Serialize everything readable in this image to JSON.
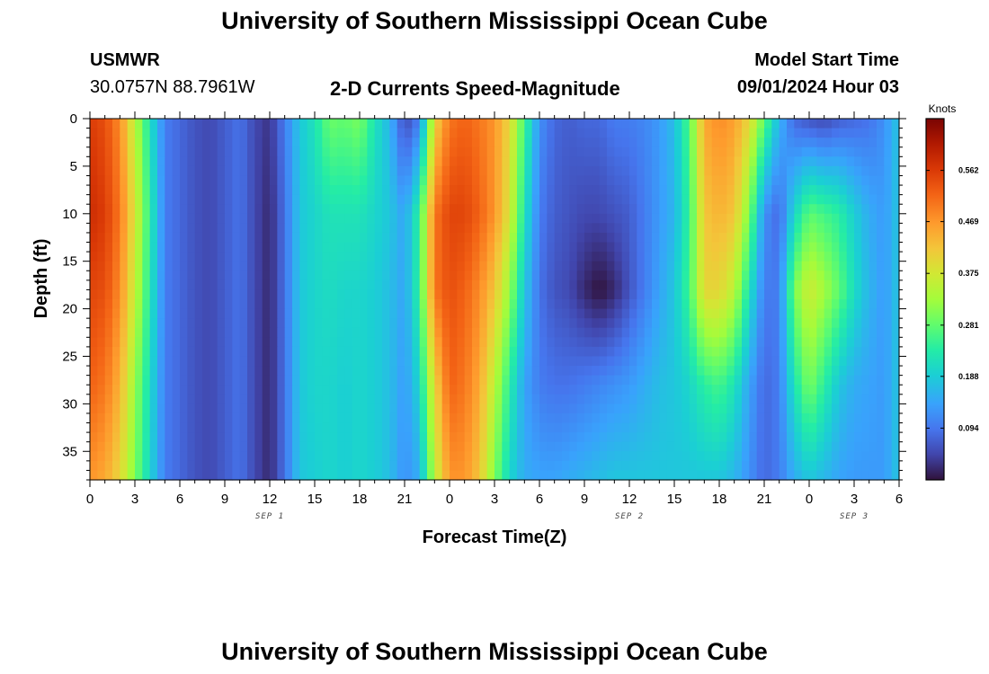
{
  "header": {
    "title": "University of Southern Mississippi Ocean Cube",
    "station": "USMWR",
    "coords": "30.0757N  88.7961W",
    "subtitle": "2-D Currents Speed-Magnitude",
    "model_start_label": "Model Start Time",
    "model_start_value": "09/01/2024 Hour 03"
  },
  "footer": {
    "title": "University of Southern Mississippi Ocean Cube"
  },
  "chart_data": {
    "type": "heatmap",
    "title": "2-D Currents Speed-Magnitude",
    "xlabel": "Forecast Time(Z)",
    "ylabel": "Depth (ft)",
    "x_range_hours": [
      0,
      54
    ],
    "y_range_ft": [
      0,
      38
    ],
    "x_ticks": [
      {
        "hour": 0,
        "label": "0"
      },
      {
        "hour": 3,
        "label": "3"
      },
      {
        "hour": 6,
        "label": "6"
      },
      {
        "hour": 9,
        "label": "9"
      },
      {
        "hour": 12,
        "label": "12"
      },
      {
        "hour": 15,
        "label": "15"
      },
      {
        "hour": 18,
        "label": "18"
      },
      {
        "hour": 21,
        "label": "21"
      },
      {
        "hour": 24,
        "label": "0"
      },
      {
        "hour": 27,
        "label": "3"
      },
      {
        "hour": 30,
        "label": "6"
      },
      {
        "hour": 33,
        "label": "9"
      },
      {
        "hour": 36,
        "label": "12"
      },
      {
        "hour": 39,
        "label": "15"
      },
      {
        "hour": 42,
        "label": "18"
      },
      {
        "hour": 45,
        "label": "21"
      },
      {
        "hour": 48,
        "label": "0"
      },
      {
        "hour": 51,
        "label": "3"
      },
      {
        "hour": 54,
        "label": "6"
      }
    ],
    "date_labels": [
      {
        "hour": 12,
        "label": "SEP 1"
      },
      {
        "hour": 36,
        "label": "SEP 2"
      },
      {
        "hour": 51,
        "label": "SEP 3"
      }
    ],
    "y_ticks": [
      {
        "value": 0,
        "label": "0"
      },
      {
        "value": 5,
        "label": "5"
      },
      {
        "value": 10,
        "label": "10"
      },
      {
        "value": 15,
        "label": "15"
      },
      {
        "value": 20,
        "label": "20"
      },
      {
        "value": 25,
        "label": "25"
      },
      {
        "value": 30,
        "label": "30"
      },
      {
        "value": 35,
        "label": "35"
      }
    ],
    "colorbar": {
      "units": "Knots",
      "min": 0,
      "max": 0.656,
      "ticks": [
        {
          "value": 0.094,
          "label": "0.094"
        },
        {
          "value": 0.188,
          "label": "0.188"
        },
        {
          "value": 0.281,
          "label": "0.281"
        },
        {
          "value": 0.375,
          "label": "0.375"
        },
        {
          "value": 0.469,
          "label": "0.469"
        },
        {
          "value": 0.562,
          "label": "0.562"
        }
      ]
    },
    "profile_hours": [
      0,
      1,
      2,
      3,
      4,
      5,
      6,
      7,
      8,
      9,
      10,
      11,
      12,
      13,
      14,
      15,
      16,
      17,
      18,
      19,
      20,
      21,
      22,
      23,
      24,
      25,
      26,
      27,
      28,
      29,
      30,
      31,
      32,
      33,
      34,
      35,
      36,
      37,
      38,
      39,
      40,
      41,
      42,
      43,
      44,
      45,
      46,
      47,
      48,
      49,
      50,
      51,
      52,
      53,
      54
    ],
    "profile_depths_ft": [
      0,
      10,
      18,
      28,
      38
    ],
    "speed_knots": [
      [
        0.56,
        0.54,
        0.48,
        0.35,
        0.22,
        0.1,
        0.08,
        0.06,
        0.05,
        0.07,
        0.09,
        0.05,
        0.03,
        0.1,
        0.18,
        0.22,
        0.29,
        0.28,
        0.3,
        0.22,
        0.16,
        0.05,
        0.1,
        0.4,
        0.5,
        0.52,
        0.5,
        0.47,
        0.4,
        0.26,
        0.12,
        0.08,
        0.07,
        0.08,
        0.08,
        0.1,
        0.1,
        0.11,
        0.13,
        0.17,
        0.27,
        0.45,
        0.48,
        0.46,
        0.4,
        0.28,
        0.16,
        0.08,
        0.06,
        0.05,
        0.07,
        0.08,
        0.09,
        0.12,
        0.18
      ],
      [
        0.58,
        0.56,
        0.5,
        0.38,
        0.24,
        0.1,
        0.08,
        0.06,
        0.05,
        0.07,
        0.09,
        0.05,
        0.02,
        0.09,
        0.18,
        0.2,
        0.22,
        0.22,
        0.22,
        0.2,
        0.18,
        0.14,
        0.25,
        0.5,
        0.55,
        0.55,
        0.52,
        0.47,
        0.38,
        0.22,
        0.1,
        0.07,
        0.06,
        0.05,
        0.05,
        0.06,
        0.07,
        0.1,
        0.13,
        0.16,
        0.25,
        0.42,
        0.44,
        0.42,
        0.3,
        0.12,
        0.08,
        0.2,
        0.28,
        0.26,
        0.24,
        0.19,
        0.15,
        0.13,
        0.18
      ],
      [
        0.55,
        0.54,
        0.48,
        0.36,
        0.23,
        0.1,
        0.08,
        0.06,
        0.05,
        0.07,
        0.09,
        0.05,
        0.02,
        0.09,
        0.18,
        0.2,
        0.21,
        0.2,
        0.2,
        0.19,
        0.17,
        0.14,
        0.25,
        0.5,
        0.54,
        0.52,
        0.48,
        0.42,
        0.32,
        0.18,
        0.09,
        0.06,
        0.05,
        0.02,
        0.0,
        0.02,
        0.06,
        0.1,
        0.14,
        0.18,
        0.26,
        0.4,
        0.4,
        0.35,
        0.22,
        0.1,
        0.1,
        0.3,
        0.37,
        0.33,
        0.28,
        0.21,
        0.16,
        0.13,
        0.18
      ],
      [
        0.52,
        0.5,
        0.44,
        0.32,
        0.21,
        0.1,
        0.08,
        0.06,
        0.05,
        0.07,
        0.09,
        0.05,
        0.02,
        0.09,
        0.18,
        0.2,
        0.2,
        0.19,
        0.2,
        0.19,
        0.17,
        0.13,
        0.2,
        0.4,
        0.52,
        0.5,
        0.45,
        0.35,
        0.24,
        0.14,
        0.1,
        0.09,
        0.09,
        0.1,
        0.11,
        0.12,
        0.13,
        0.15,
        0.17,
        0.18,
        0.2,
        0.24,
        0.26,
        0.22,
        0.14,
        0.08,
        0.1,
        0.22,
        0.3,
        0.24,
        0.18,
        0.15,
        0.14,
        0.13,
        0.18
      ],
      [
        0.47,
        0.45,
        0.4,
        0.3,
        0.2,
        0.1,
        0.08,
        0.06,
        0.05,
        0.07,
        0.09,
        0.05,
        0.02,
        0.09,
        0.18,
        0.19,
        0.2,
        0.19,
        0.2,
        0.19,
        0.17,
        0.12,
        0.15,
        0.35,
        0.47,
        0.47,
        0.42,
        0.3,
        0.2,
        0.15,
        0.14,
        0.14,
        0.15,
        0.16,
        0.17,
        0.18,
        0.18,
        0.18,
        0.18,
        0.18,
        0.18,
        0.18,
        0.18,
        0.16,
        0.12,
        0.08,
        0.1,
        0.15,
        0.18,
        0.16,
        0.14,
        0.13,
        0.13,
        0.13,
        0.18
      ]
    ]
  }
}
